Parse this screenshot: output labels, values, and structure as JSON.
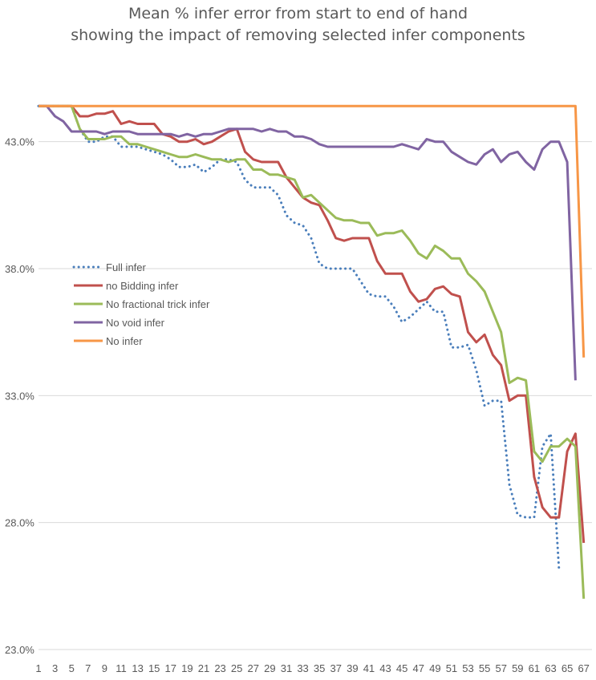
{
  "chart_data": {
    "type": "line",
    "title": "Mean % infer error from start to end of hand",
    "subtitle": "showing the impact of removing selected infer components",
    "xlabel": "",
    "ylabel": "",
    "ylim": [
      23.0,
      47.0
    ],
    "xlim": [
      1,
      68
    ],
    "y_ticks": [
      "23.0%",
      "28.0%",
      "33.0%",
      "38.0%",
      "43.0%"
    ],
    "y_tick_values": [
      23,
      28,
      33,
      38,
      43
    ],
    "x_ticks": [
      "1",
      "3",
      "5",
      "7",
      "9",
      "11",
      "13",
      "15",
      "17",
      "19",
      "21",
      "23",
      "25",
      "27",
      "29",
      "31",
      "33",
      "35",
      "37",
      "39",
      "41",
      "43",
      "45",
      "47",
      "49",
      "51",
      "53",
      "55",
      "57",
      "59",
      "61",
      "63",
      "65",
      "67"
    ],
    "grid": "horizontal",
    "legend_position": "left-middle",
    "series": [
      {
        "name": "Full infer",
        "color": "#4a7ebb",
        "style": "dotted",
        "values": [
          44.4,
          44.4,
          44.4,
          44.4,
          44.4,
          43.5,
          43.0,
          43.0,
          43.2,
          43.2,
          42.8,
          42.8,
          42.8,
          42.7,
          42.6,
          42.5,
          42.3,
          42.0,
          42.0,
          42.1,
          41.8,
          42.0,
          42.3,
          42.3,
          42.2,
          41.5,
          41.2,
          41.2,
          41.2,
          40.9,
          40.1,
          39.8,
          39.7,
          39.2,
          38.2,
          38.0,
          38.0,
          38.0,
          38.0,
          37.5,
          37.0,
          36.9,
          36.9,
          36.5,
          35.9,
          36.1,
          36.4,
          36.7,
          36.3,
          36.3,
          34.9,
          34.9,
          35.0,
          34.0,
          32.6,
          32.8,
          32.8,
          29.5,
          28.3,
          28.2,
          28.2,
          31.0,
          31.5,
          26.2
        ]
      },
      {
        "name": "no Bidding infer",
        "color": "#c0504d",
        "style": "solid",
        "values": [
          44.4,
          44.4,
          44.4,
          44.4,
          44.4,
          44.0,
          44.0,
          44.1,
          44.1,
          44.2,
          43.7,
          43.8,
          43.7,
          43.7,
          43.7,
          43.3,
          43.2,
          43.0,
          43.0,
          43.1,
          42.9,
          43.0,
          43.2,
          43.4,
          43.5,
          42.6,
          42.3,
          42.2,
          42.2,
          42.2,
          41.6,
          41.2,
          40.8,
          40.6,
          40.5,
          39.9,
          39.2,
          39.1,
          39.2,
          39.2,
          39.2,
          38.3,
          37.8,
          37.8,
          37.8,
          37.1,
          36.7,
          36.8,
          37.2,
          37.3,
          37.0,
          36.9,
          35.5,
          35.1,
          35.4,
          34.6,
          34.2,
          32.8,
          33.0,
          33.0,
          29.8,
          28.6,
          28.2,
          28.2,
          30.8,
          31.5,
          27.2
        ]
      },
      {
        "name": "No fractional trick infer",
        "color": "#9bbb59",
        "style": "solid",
        "values": [
          44.4,
          44.4,
          44.4,
          44.4,
          44.4,
          43.5,
          43.1,
          43.1,
          43.1,
          43.2,
          43.2,
          42.9,
          42.9,
          42.8,
          42.7,
          42.6,
          42.5,
          42.4,
          42.4,
          42.5,
          42.4,
          42.3,
          42.3,
          42.2,
          42.3,
          42.3,
          41.9,
          41.9,
          41.7,
          41.7,
          41.6,
          41.5,
          40.8,
          40.9,
          40.6,
          40.3,
          40.0,
          39.9,
          39.9,
          39.8,
          39.8,
          39.3,
          39.4,
          39.4,
          39.5,
          39.1,
          38.6,
          38.4,
          38.9,
          38.7,
          38.4,
          38.4,
          37.8,
          37.5,
          37.1,
          36.3,
          35.5,
          33.5,
          33.7,
          33.6,
          30.8,
          30.4,
          31.0,
          31.0,
          31.3,
          31.0,
          25.0
        ]
      },
      {
        "name": "No void infer",
        "color": "#8064a2",
        "style": "solid",
        "values": [
          44.4,
          44.4,
          44.0,
          43.8,
          43.4,
          43.4,
          43.4,
          43.4,
          43.3,
          43.4,
          43.4,
          43.4,
          43.3,
          43.3,
          43.3,
          43.3,
          43.3,
          43.2,
          43.3,
          43.2,
          43.3,
          43.3,
          43.4,
          43.5,
          43.5,
          43.5,
          43.5,
          43.4,
          43.5,
          43.4,
          43.4,
          43.2,
          43.2,
          43.1,
          42.9,
          42.8,
          42.8,
          42.8,
          42.8,
          42.8,
          42.8,
          42.8,
          42.8,
          42.8,
          42.9,
          42.8,
          42.7,
          43.1,
          43.0,
          43.0,
          42.6,
          42.4,
          42.2,
          42.1,
          42.5,
          42.7,
          42.2,
          42.5,
          42.6,
          42.2,
          41.9,
          42.7,
          43.0,
          43.0,
          42.2,
          33.6
        ]
      },
      {
        "name": "No infer",
        "color": "#f79646",
        "style": "solid",
        "values": [
          44.4,
          44.4,
          44.4,
          44.4,
          44.4,
          44.4,
          44.4,
          44.4,
          44.4,
          44.4,
          44.4,
          44.4,
          44.4,
          44.4,
          44.4,
          44.4,
          44.4,
          44.4,
          44.4,
          44.4,
          44.4,
          44.4,
          44.4,
          44.4,
          44.4,
          44.4,
          44.4,
          44.4,
          44.4,
          44.4,
          44.4,
          44.4,
          44.4,
          44.4,
          44.4,
          44.4,
          44.4,
          44.4,
          44.4,
          44.4,
          44.4,
          44.4,
          44.4,
          44.4,
          44.4,
          44.4,
          44.4,
          44.4,
          44.4,
          44.4,
          44.4,
          44.4,
          44.4,
          44.4,
          44.4,
          44.4,
          44.4,
          44.4,
          44.4,
          44.4,
          44.4,
          44.4,
          44.4,
          44.4,
          44.4,
          44.4,
          34.5
        ]
      }
    ]
  }
}
